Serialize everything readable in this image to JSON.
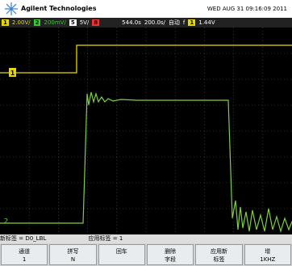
{
  "header": {
    "brand": "Agilent Technologies",
    "datetime": "WED AUG 31 09:16:09 2011"
  },
  "status": {
    "ch1": "1",
    "ch1_scale": "2.00V/",
    "ch2": "2",
    "ch2_scale": "200mV/",
    "ch3": "5",
    "ch3_scale": "5V/",
    "ch4": "8",
    "delay": "544.0s",
    "timebase": "200.0s/",
    "mode": "自动",
    "trig_slope": "f",
    "trig_ch": "1",
    "trig_level": "1.44V"
  },
  "markers": {
    "ch1": "1",
    "ch2": "2"
  },
  "label_bar": {
    "new_label": "新标签 = ",
    "new_label_value": "D0_LBL",
    "apply_label": "应用标签 = ",
    "apply_label_value": "1"
  },
  "softkeys": [
    {
      "line1": "通道",
      "line2": "1"
    },
    {
      "line1": "拼写",
      "line2": "N"
    },
    {
      "line1": "回车",
      "line2": ""
    },
    {
      "line1": "删除",
      "line2": "字段"
    },
    {
      "line1": "应用新",
      "line2": "标签"
    },
    {
      "line1": "增",
      "line2": "1KHZ"
    }
  ]
}
